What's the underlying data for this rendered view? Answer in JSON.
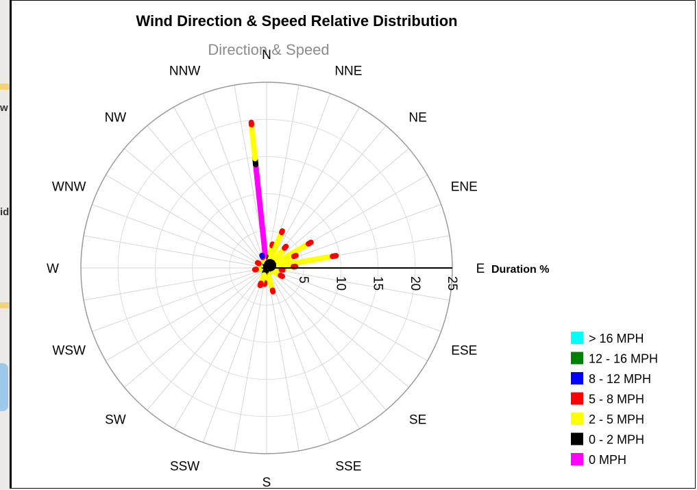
{
  "map_fragment": {
    "glyphs": [
      "w",
      "id"
    ],
    "colors": {
      "land": "#eceae6",
      "road": "#f3d27a",
      "water": "#9ec8ea"
    }
  },
  "chart_data": {
    "type": "polar-stacked-bar",
    "title": "Wind Direction & Speed Relative Distribution",
    "subtitle": "Direction & Speed",
    "radial_axis": {
      "label": "Duration %",
      "range": [
        0,
        25
      ],
      "ticks": [
        5,
        10,
        15,
        20,
        25
      ]
    },
    "categories": [
      "N",
      "NNE",
      "NE",
      "ENE",
      "E",
      "ESE",
      "SE",
      "SSE",
      "S",
      "SSW",
      "SW",
      "WSW",
      "W",
      "WNW",
      "NW",
      "NNW"
    ],
    "bar_direction_deg": [
      354,
      14,
      23,
      42,
      60,
      67,
      80,
      87,
      97,
      118,
      165,
      187,
      200,
      262,
      300,
      340
    ],
    "legend_position": "bottom-right",
    "series": [
      {
        "name": "> 16 MPH",
        "color": "#00ffff",
        "values": [
          0,
          0,
          0,
          0,
          0,
          0,
          0,
          0,
          0,
          0,
          0,
          0,
          0,
          0,
          0,
          0
        ]
      },
      {
        "name": "12 - 16 MPH",
        "color": "#008000",
        "values": [
          0,
          0,
          0,
          0,
          0,
          0,
          0,
          0,
          0,
          0,
          0,
          0,
          0,
          0,
          0,
          0
        ]
      },
      {
        "name": "8 - 12 MPH",
        "color": "#0000ff",
        "values": [
          0,
          0,
          0,
          0,
          0,
          0,
          0,
          0,
          0,
          0,
          0,
          0,
          0,
          0,
          0,
          0.1
        ]
      },
      {
        "name": "5 - 8 MPH",
        "color": "#ff0000",
        "values": [
          0.3,
          0.2,
          0.2,
          0.3,
          0.4,
          0.3,
          0.5,
          0.3,
          0.2,
          0.3,
          0.2,
          0.2,
          0.3,
          0.2,
          0.2,
          0.2
        ]
      },
      {
        "name": "2 - 5 MPH",
        "color": "#ffff00",
        "values": [
          4.6,
          1.1,
          4.2,
          2.2,
          5.0,
          2.8,
          7.5,
          2.6,
          1.2,
          1.3,
          2.3,
          1.2,
          1.2,
          0.6,
          0.4,
          0.6
        ]
      },
      {
        "name": "0 - 2 MPH",
        "color": "#000000",
        "values": [
          0.8,
          2.0,
          1.0,
          1.4,
          1.5,
          1.2,
          1.5,
          1.0,
          0.8,
          0.8,
          0.8,
          0.8,
          1.0,
          0.8,
          0.8,
          0.9
        ]
      },
      {
        "name": "0 MPH",
        "color": "#ff00ff",
        "values": [
          14.0,
          0,
          0,
          0,
          0,
          0,
          0,
          0,
          0,
          0,
          0,
          0,
          0,
          0,
          0,
          0
        ]
      }
    ]
  }
}
